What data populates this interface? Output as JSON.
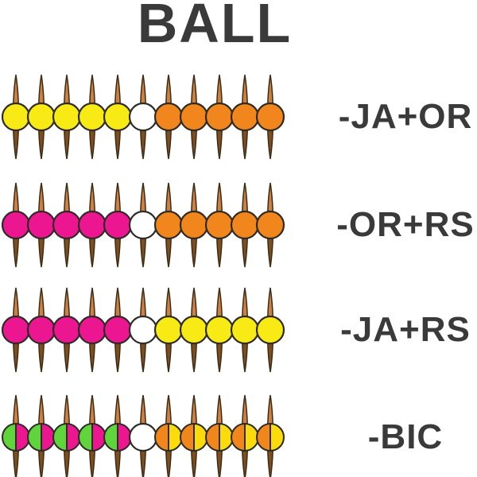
{
  "title": "BALL",
  "colors": {
    "yellow": "#F7EA15",
    "orange": "#F1861D",
    "magenta": "#EB1690",
    "green": "#5ED63B",
    "gold": "#FBDB0C",
    "white": "#FFFFFF",
    "spike_top": "#CB8143",
    "spike_bottom": "#7C4E20",
    "spike_stroke": "#3F2C14",
    "bead_stroke": "#2E2A25",
    "text": "#3A3A3A"
  },
  "rows": [
    {
      "label": "-JA+OR",
      "beads": [
        "yellow",
        "yellow",
        "yellow",
        "yellow",
        "yellow",
        "white",
        "orange",
        "orange",
        "orange",
        "orange",
        "orange"
      ]
    },
    {
      "label": "-OR+RS",
      "beads": [
        "magenta",
        "magenta",
        "magenta",
        "magenta",
        "magenta",
        "white",
        "orange",
        "orange",
        "orange",
        "orange",
        "orange"
      ]
    },
    {
      "label": "-JA+RS",
      "beads": [
        "magenta",
        "magenta",
        "magenta",
        "magenta",
        "magenta",
        "white",
        "yellow",
        "yellow",
        "yellow",
        "yellow",
        "yellow"
      ]
    },
    {
      "label": "-BIC",
      "beads": [
        "green|magenta",
        "green|magenta",
        "green|magenta",
        "green|magenta",
        "green|magenta",
        "white",
        "orange|gold",
        "orange|gold",
        "orange|gold",
        "orange|gold",
        "orange|gold"
      ]
    }
  ]
}
